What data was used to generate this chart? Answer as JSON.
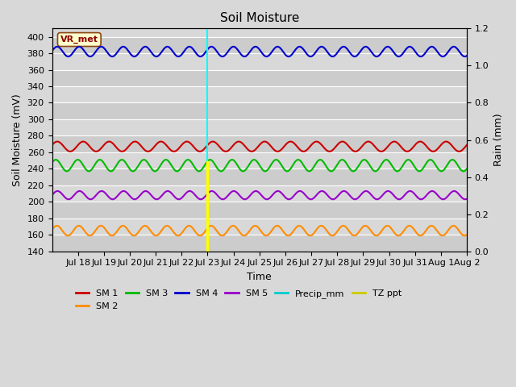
{
  "title": "Soil Moisture",
  "xlabel": "Time",
  "ylabel_left": "Soil Moisture (mV)",
  "ylabel_right": "Rain (mm)",
  "ylim_left": [
    140,
    410
  ],
  "ylim_right": [
    0.0,
    1.2
  ],
  "yticks_left": [
    140,
    160,
    180,
    200,
    220,
    240,
    260,
    280,
    300,
    320,
    340,
    360,
    380,
    400
  ],
  "yticks_right": [
    0.0,
    0.2,
    0.4,
    0.6,
    0.8,
    1.0,
    1.2
  ],
  "xtick_labels": [
    "Jul 18",
    "Jul 19",
    "Jul 20",
    "Jul 21",
    "Jul 22",
    "Jul 23",
    "Jul 24",
    "Jul 25",
    "Jul 26",
    "Jul 27",
    "Jul 28",
    "Jul 29",
    "Jul 30",
    "Jul 31",
    "Aug 1",
    "Aug 2"
  ],
  "series": {
    "SM1": {
      "color": "#cc0000",
      "mean": 267,
      "amp": 6,
      "period": 1.0,
      "phase": 0.3
    },
    "SM2": {
      "color": "#ff8c00",
      "mean": 165,
      "amp": 6,
      "period": 0.85,
      "phase": 0.2
    },
    "SM3": {
      "color": "#00bb00",
      "mean": 244,
      "amp": 7,
      "period": 0.85,
      "phase": 0.5
    },
    "SM4": {
      "color": "#0000cc",
      "mean": 382,
      "amp": 6,
      "period": 0.85,
      "phase": 0.1
    },
    "SM5": {
      "color": "#9900cc",
      "mean": 208,
      "amp": 5,
      "period": 0.85,
      "phase": 0.0
    }
  },
  "vline_x": 6.0,
  "vr_met_label": "VR_met",
  "fig_facecolor": "#d8d8d8",
  "plot_facecolor": "#d0d0d0",
  "band_colors": [
    "#c8c8c8",
    "#d8d8d8"
  ],
  "legend_entries": [
    "SM 1",
    "SM 2",
    "SM 3",
    "SM 4",
    "SM 5",
    "Precip_mm",
    "TZ ppt"
  ],
  "legend_colors": [
    "#cc0000",
    "#ff8c00",
    "#00bb00",
    "#0000cc",
    "#9900cc",
    "#00cccc",
    "#cccc00"
  ]
}
